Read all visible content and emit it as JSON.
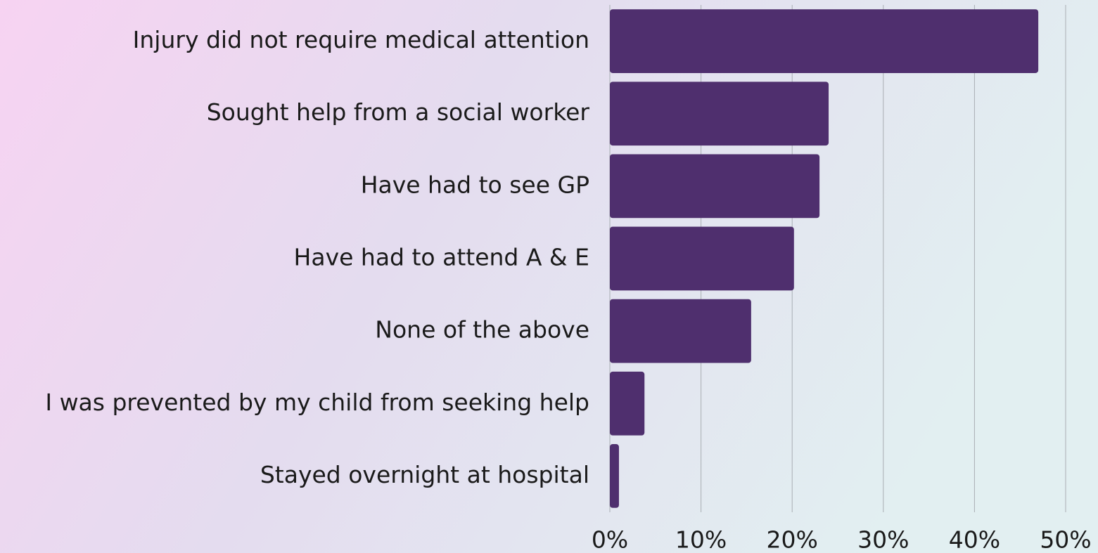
{
  "chart_data": {
    "type": "bar",
    "orientation": "horizontal",
    "categories": [
      "Injury did not require medical attention",
      "Sought help from a social worker",
      "Have had to see GP",
      "Have had to attend A & E",
      "None of the above",
      "I was prevented by my child from seeking help",
      "Stayed overnight at hospital"
    ],
    "values": [
      47,
      24,
      23,
      20.2,
      15.5,
      3.8,
      1
    ],
    "color": "#4f2f6e",
    "xlim": [
      0,
      50
    ],
    "xticks": [
      {
        "value": 0,
        "label": "0%"
      },
      {
        "value": 10,
        "label": "10%"
      },
      {
        "value": 20,
        "label": "20%"
      },
      {
        "value": 30,
        "label": "30%"
      },
      {
        "value": 40,
        "label": "40%"
      },
      {
        "value": 50,
        "label": "50%"
      }
    ],
    "grid": true
  }
}
